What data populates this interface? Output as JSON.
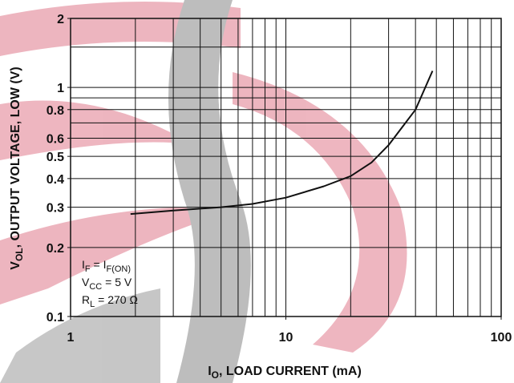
{
  "chart_data": {
    "type": "line",
    "x_label": [
      "I",
      "O",
      ", LOAD CURRENT (mA)"
    ],
    "y_label": [
      "V",
      "OL",
      ", OUTPUT VOLTAGE, LOW (V)"
    ],
    "annotations": [
      [
        "I",
        "F",
        " = I",
        "F(ON)"
      ],
      [
        "V",
        "CC",
        " = 5 V"
      ],
      [
        "R",
        "L",
        " = 270 Ω"
      ]
    ],
    "series": [
      {
        "color": "#111111",
        "x": [
          1.9,
          3,
          5,
          7,
          10,
          15,
          20,
          25,
          30,
          40,
          48
        ],
        "values": [
          0.28,
          0.29,
          0.3,
          0.31,
          0.33,
          0.37,
          0.41,
          0.47,
          0.56,
          0.8,
          1.18
        ]
      }
    ],
    "xlim": [
      1,
      100
    ],
    "ylim": [
      0.1,
      2
    ],
    "xticks": [
      1,
      10,
      100
    ],
    "yticks": [
      0.1,
      0.2,
      0.3,
      0.4,
      0.5,
      0.6,
      0.8,
      1,
      2
    ],
    "xgrid": [
      2,
      3,
      4,
      5,
      6,
      7,
      8,
      9,
      10,
      20,
      30,
      40,
      50,
      60,
      70,
      80,
      90
    ],
    "ygrid": [
      0.2,
      0.3,
      0.4,
      0.5,
      0.6,
      0.7,
      0.8,
      0.9,
      1,
      1.5
    ],
    "log_x": true,
    "log_y": true,
    "grid": true
  }
}
